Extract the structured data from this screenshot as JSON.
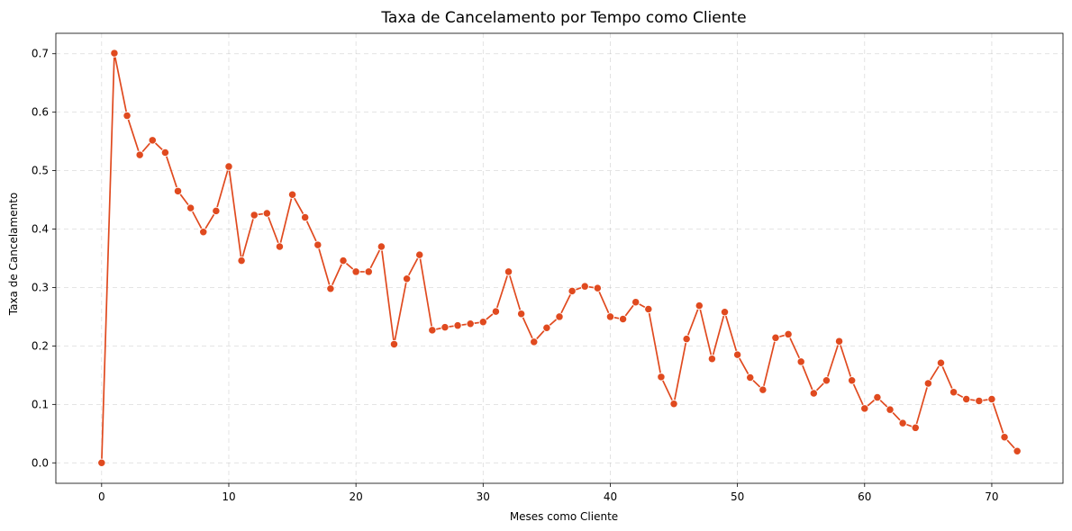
{
  "chart_data": {
    "type": "line",
    "title": "Taxa de Cancelamento por Tempo como Cliente",
    "xlabel": "Meses como Cliente",
    "ylabel": "Taxa de Cancelamento",
    "xlim": [
      -3.6,
      75.6
    ],
    "ylim": [
      -0.035,
      0.735
    ],
    "xticks": [
      0,
      10,
      20,
      30,
      40,
      50,
      60,
      70
    ],
    "yticks": [
      0.0,
      0.1,
      0.2,
      0.3,
      0.4,
      0.5,
      0.6,
      0.7
    ],
    "xtick_labels": [
      "0",
      "10",
      "20",
      "30",
      "40",
      "50",
      "60",
      "70"
    ],
    "ytick_labels": [
      "0.0",
      "0.1",
      "0.2",
      "0.3",
      "0.4",
      "0.5",
      "0.6",
      "0.7"
    ],
    "grid": true,
    "color": "#e04a1f",
    "x": [
      0,
      1,
      2,
      3,
      4,
      5,
      6,
      7,
      8,
      9,
      10,
      11,
      12,
      13,
      14,
      15,
      16,
      17,
      18,
      19,
      20,
      21,
      22,
      23,
      24,
      25,
      26,
      27,
      28,
      29,
      30,
      31,
      32,
      33,
      34,
      35,
      36,
      37,
      38,
      39,
      40,
      41,
      42,
      43,
      44,
      45,
      46,
      47,
      48,
      49,
      50,
      51,
      52,
      53,
      54,
      55,
      56,
      57,
      58,
      59,
      60,
      61,
      62,
      63,
      64,
      65,
      66,
      67,
      68,
      69,
      70,
      71,
      72
    ],
    "y": [
      0.0,
      0.701,
      0.594,
      0.527,
      0.552,
      0.531,
      0.465,
      0.436,
      0.395,
      0.431,
      0.507,
      0.346,
      0.424,
      0.427,
      0.37,
      0.459,
      0.42,
      0.373,
      0.298,
      0.346,
      0.327,
      0.327,
      0.37,
      0.203,
      0.315,
      0.356,
      0.227,
      0.232,
      0.235,
      0.238,
      0.241,
      0.259,
      0.327,
      0.255,
      0.207,
      0.231,
      0.25,
      0.294,
      0.302,
      0.299,
      0.25,
      0.246,
      0.275,
      0.263,
      0.147,
      0.101,
      0.212,
      0.269,
      0.178,
      0.258,
      0.185,
      0.146,
      0.125,
      0.214,
      0.22,
      0.173,
      0.119,
      0.141,
      0.208,
      0.141,
      0.093,
      0.112,
      0.091,
      0.068,
      0.06,
      0.136,
      0.171,
      0.121,
      0.109,
      0.106,
      0.109,
      0.044,
      0.02
    ]
  }
}
